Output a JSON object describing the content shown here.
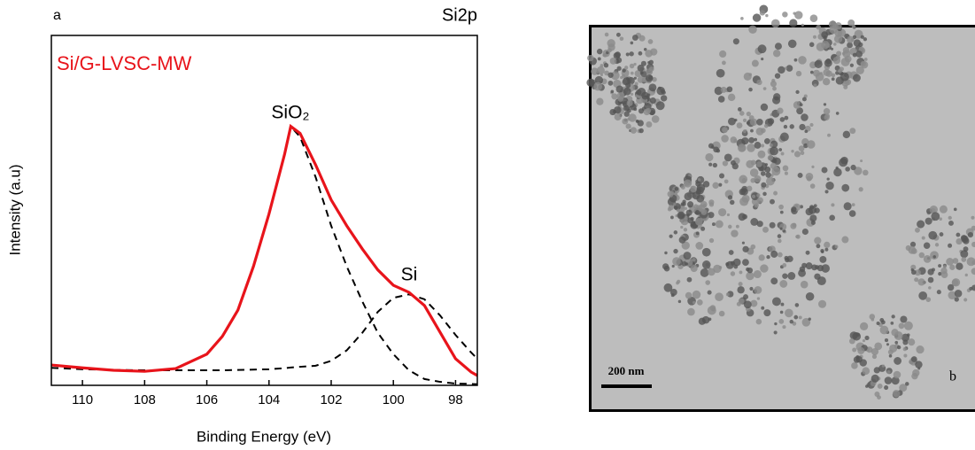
{
  "chart_data": {
    "type": "line",
    "panel_label": "a",
    "title": "Si2p",
    "x_label": "Binding Energy (eV)",
    "y_label": "Intensity (a.u)",
    "annotations": [
      "SiO₂",
      "Si"
    ],
    "x": [
      111,
      110,
      109,
      108,
      107,
      106,
      105.5,
      105,
      104.5,
      104,
      103.5,
      103.3,
      103,
      102.5,
      102,
      101.5,
      101,
      100.5,
      100,
      99.5,
      99,
      98.5,
      98,
      97.5,
      97.3
    ],
    "series": [
      {
        "name": "Si/G-LVSC-MW",
        "color": "#e8141b",
        "dashed": false,
        "values": [
          5.8,
          5,
          4.3,
          4,
          4.8,
          8.9,
          14,
          21.5,
          34,
          49,
          66,
          74,
          72,
          63,
          53,
          45.6,
          39,
          33,
          28.6,
          26.6,
          22.8,
          15.2,
          7.6,
          3.8,
          2.8
        ]
      },
      {
        "color": "#000000",
        "dashed": true,
        "values": [
          5.8,
          5,
          4.3,
          4,
          4.8,
          8.9,
          14,
          21.5,
          34,
          49,
          66,
          74,
          71,
          59.5,
          45.6,
          34,
          24,
          15,
          8.9,
          4.3,
          1.8,
          1,
          0.5,
          0.4,
          0.3
        ]
      },
      {
        "color": "#000000",
        "dashed": true,
        "values": [
          5,
          4.6,
          4.4,
          4.3,
          4.3,
          4.3,
          4.3,
          4.4,
          4.5,
          4.6,
          4.9,
          5.1,
          5.3,
          5.6,
          7,
          10,
          15,
          21,
          25,
          26,
          24.6,
          20,
          14.4,
          9.4,
          7.6
        ]
      }
    ],
    "xlim": [
      111,
      97.3
    ],
    "xticks": [
      110,
      108,
      106,
      104,
      102,
      100,
      98
    ],
    "ylim": [
      0,
      100
    ]
  },
  "image": {
    "scale_bar": "200 nm",
    "label": "b"
  }
}
